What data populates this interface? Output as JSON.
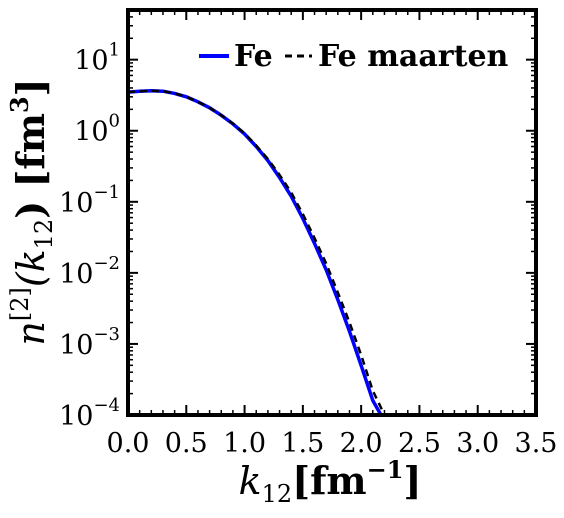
{
  "chart_data": {
    "type": "line",
    "title": "",
    "xlabel": "k12 [fm^-1]",
    "ylabel": "n^[2](k12) [fm^3]",
    "xlabel_parts": {
      "var": "k",
      "sub": "12",
      "unit": "[fm",
      "sup": "−1",
      "close": "]"
    },
    "ylabel_parts": {
      "var": "n",
      "sup": "[2]",
      "open": "(k",
      "sub": "12",
      "mid": ") [fm",
      "sup2": "3",
      "close": "]"
    },
    "xlim": [
      0.0,
      3.5
    ],
    "ylim": [
      0.0001,
      50
    ],
    "yscale": "log",
    "grid": false,
    "legend_position": "top-right",
    "x_ticks": [
      {
        "label": "0.0",
        "value": 0.0
      },
      {
        "label": "0.5",
        "value": 0.5
      },
      {
        "label": "1.0",
        "value": 1.0
      },
      {
        "label": "1.5",
        "value": 1.5
      },
      {
        "label": "2.0",
        "value": 2.0
      },
      {
        "label": "2.5",
        "value": 2.5
      },
      {
        "label": "3.0",
        "value": 3.0
      },
      {
        "label": "3.5",
        "value": 3.5
      }
    ],
    "y_ticks": [
      {
        "base": "10",
        "exp": "1",
        "value": 10
      },
      {
        "base": "10",
        "exp": "0",
        "value": 1
      },
      {
        "base": "10",
        "exp": "−1",
        "value": 0.1
      },
      {
        "base": "10",
        "exp": "−2",
        "value": 0.01
      },
      {
        "base": "10",
        "exp": "−3",
        "value": 0.001
      },
      {
        "base": "10",
        "exp": "−4",
        "value": 0.0001
      }
    ],
    "series": [
      {
        "name": "Fe",
        "color": "#0000ff",
        "style": "solid",
        "x": [
          0.0,
          0.1,
          0.2,
          0.3,
          0.4,
          0.5,
          0.6,
          0.7,
          0.8,
          0.9,
          1.0,
          1.1,
          1.2,
          1.3,
          1.4,
          1.5,
          1.6,
          1.7,
          1.8,
          1.9,
          2.0,
          2.1,
          2.17
        ],
        "y": [
          3.5,
          3.6,
          3.65,
          3.6,
          3.35,
          3.0,
          2.55,
          2.1,
          1.65,
          1.25,
          0.9,
          0.6,
          0.38,
          0.22,
          0.12,
          0.058,
          0.026,
          0.011,
          0.0042,
          0.0015,
          0.0005,
          0.00016,
          0.0001
        ]
      },
      {
        "name": "Fe maarten",
        "color": "#000000",
        "style": "dashed",
        "x": [
          0.0,
          0.1,
          0.2,
          0.3,
          0.4,
          0.5,
          0.6,
          0.7,
          0.8,
          0.9,
          1.0,
          1.1,
          1.2,
          1.3,
          1.4,
          1.5,
          1.6,
          1.7,
          1.8,
          1.9,
          2.0,
          2.1,
          2.2
        ],
        "y": [
          3.5,
          3.6,
          3.65,
          3.6,
          3.35,
          3.0,
          2.55,
          2.1,
          1.65,
          1.26,
          0.92,
          0.62,
          0.4,
          0.24,
          0.135,
          0.067,
          0.031,
          0.0135,
          0.0053,
          0.002,
          0.0007,
          0.00022,
          0.0001
        ]
      }
    ]
  }
}
